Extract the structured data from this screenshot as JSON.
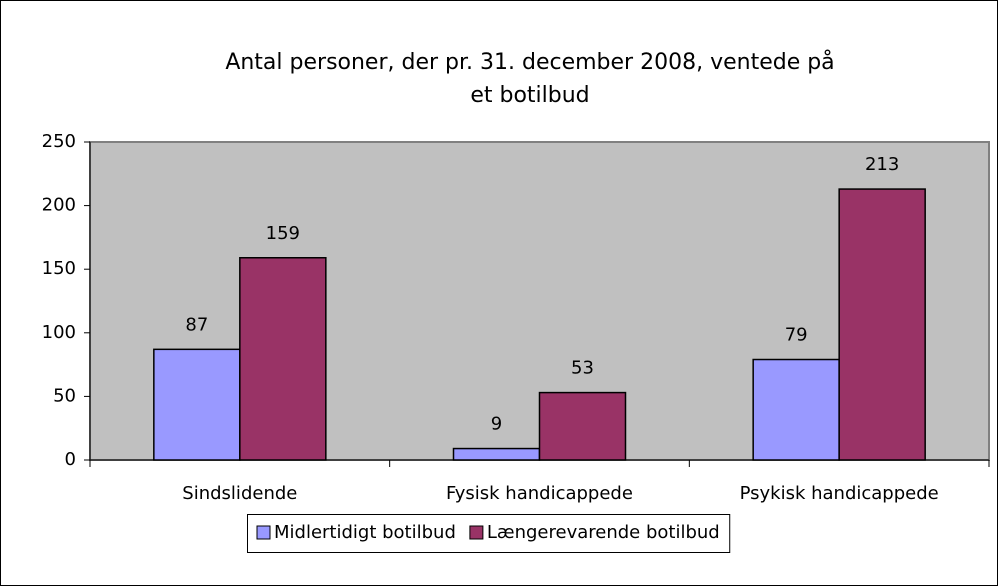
{
  "chart_data": {
    "type": "bar",
    "title": [
      "Antal personer, der pr. 31. december 2008, ventede på",
      "et botilbud"
    ],
    "categories": [
      "Sindslidende",
      "Fysisk handicappede",
      "Psykisk handicappede"
    ],
    "series": [
      {
        "name": "Midlertidigt botilbud",
        "color": "#9999ff",
        "values": [
          87,
          9,
          79
        ]
      },
      {
        "name": "Længerevarende botilbud",
        "color": "#993366",
        "values": [
          159,
          53,
          213
        ]
      }
    ],
    "ylim": [
      0,
      250
    ],
    "yticks": [
      0,
      50,
      100,
      150,
      200,
      250
    ],
    "plot_background": "#c0c0c0",
    "legend": "bottom"
  }
}
